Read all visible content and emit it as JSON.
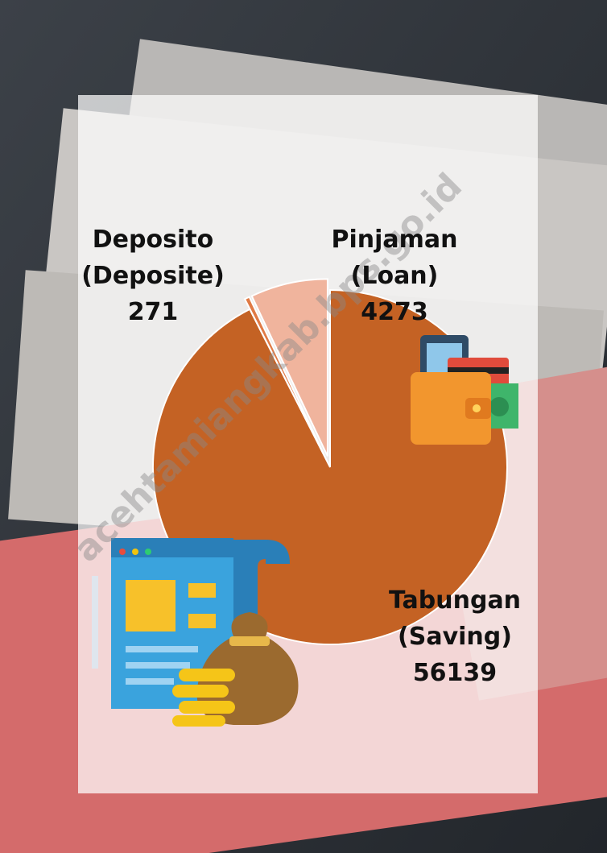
{
  "chart_data": {
    "type": "pie",
    "categories": [
      "Tabungan",
      "Deposito",
      "Pinjaman"
    ],
    "category_translations": [
      "(Saving)",
      "(Deposite)",
      "(Loan)"
    ],
    "values": [
      56139,
      271,
      4273
    ],
    "colors": [
      "#c46224",
      "#e07a45",
      "#f0b49d"
    ],
    "watermark": "acehtamiangkab.bps.go.id"
  }
}
